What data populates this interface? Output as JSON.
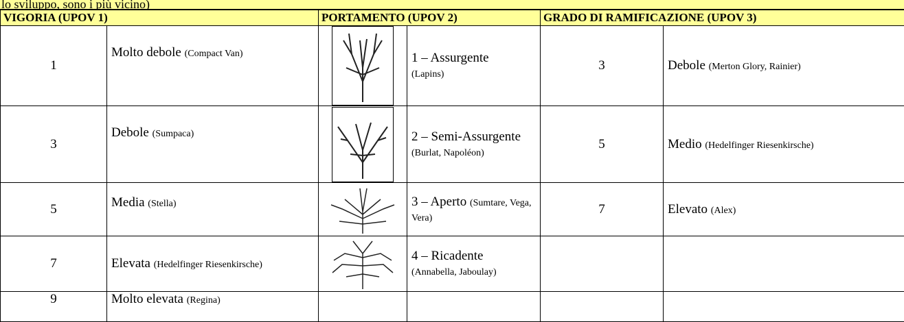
{
  "intro": "lo sviluppo, sono i più vicino)",
  "headers": [
    "VIGORIA (UPOV 1)",
    "PORTAMENTO (UPOV 2)",
    "GRADO DI RAMIFICAZIONE (UPOV 3)"
  ],
  "vigoria": [
    {
      "score": 1,
      "label": "Molto debole",
      "example": "(Compact Van)"
    },
    {
      "score": 3,
      "label": "Debole",
      "example": "(Sumpaca)"
    },
    {
      "score": 5,
      "label": "Media",
      "example": "(Stella)"
    },
    {
      "score": 7,
      "label": "Elevata",
      "example": "(Hedelfinger Riesenkirsche)"
    },
    {
      "score": 9,
      "label": "Molto elevata",
      "example": "(Regina)"
    }
  ],
  "portamento": [
    {
      "label": "1 – Assurgente",
      "example": "(Lapins)"
    },
    {
      "label": "2 – Semi-Assurgente",
      "example": "(Burlat, Napoléon)"
    },
    {
      "label": "3 – Aperto",
      "example": "(Sumtare, Vega, Vera)"
    },
    {
      "label": "4 – Ricadente",
      "example": "(Annabella, Jaboulay)"
    }
  ],
  "ramificazione": [
    {
      "score": 3,
      "label": "Debole",
      "example": "(Merton Glory, Rainier)"
    },
    {
      "score": 5,
      "label": "Medio",
      "example": "(Hedelfinger Riesenkirsche)"
    },
    {
      "score": 7,
      "label": "Elevato",
      "example": "(Alex)"
    }
  ]
}
